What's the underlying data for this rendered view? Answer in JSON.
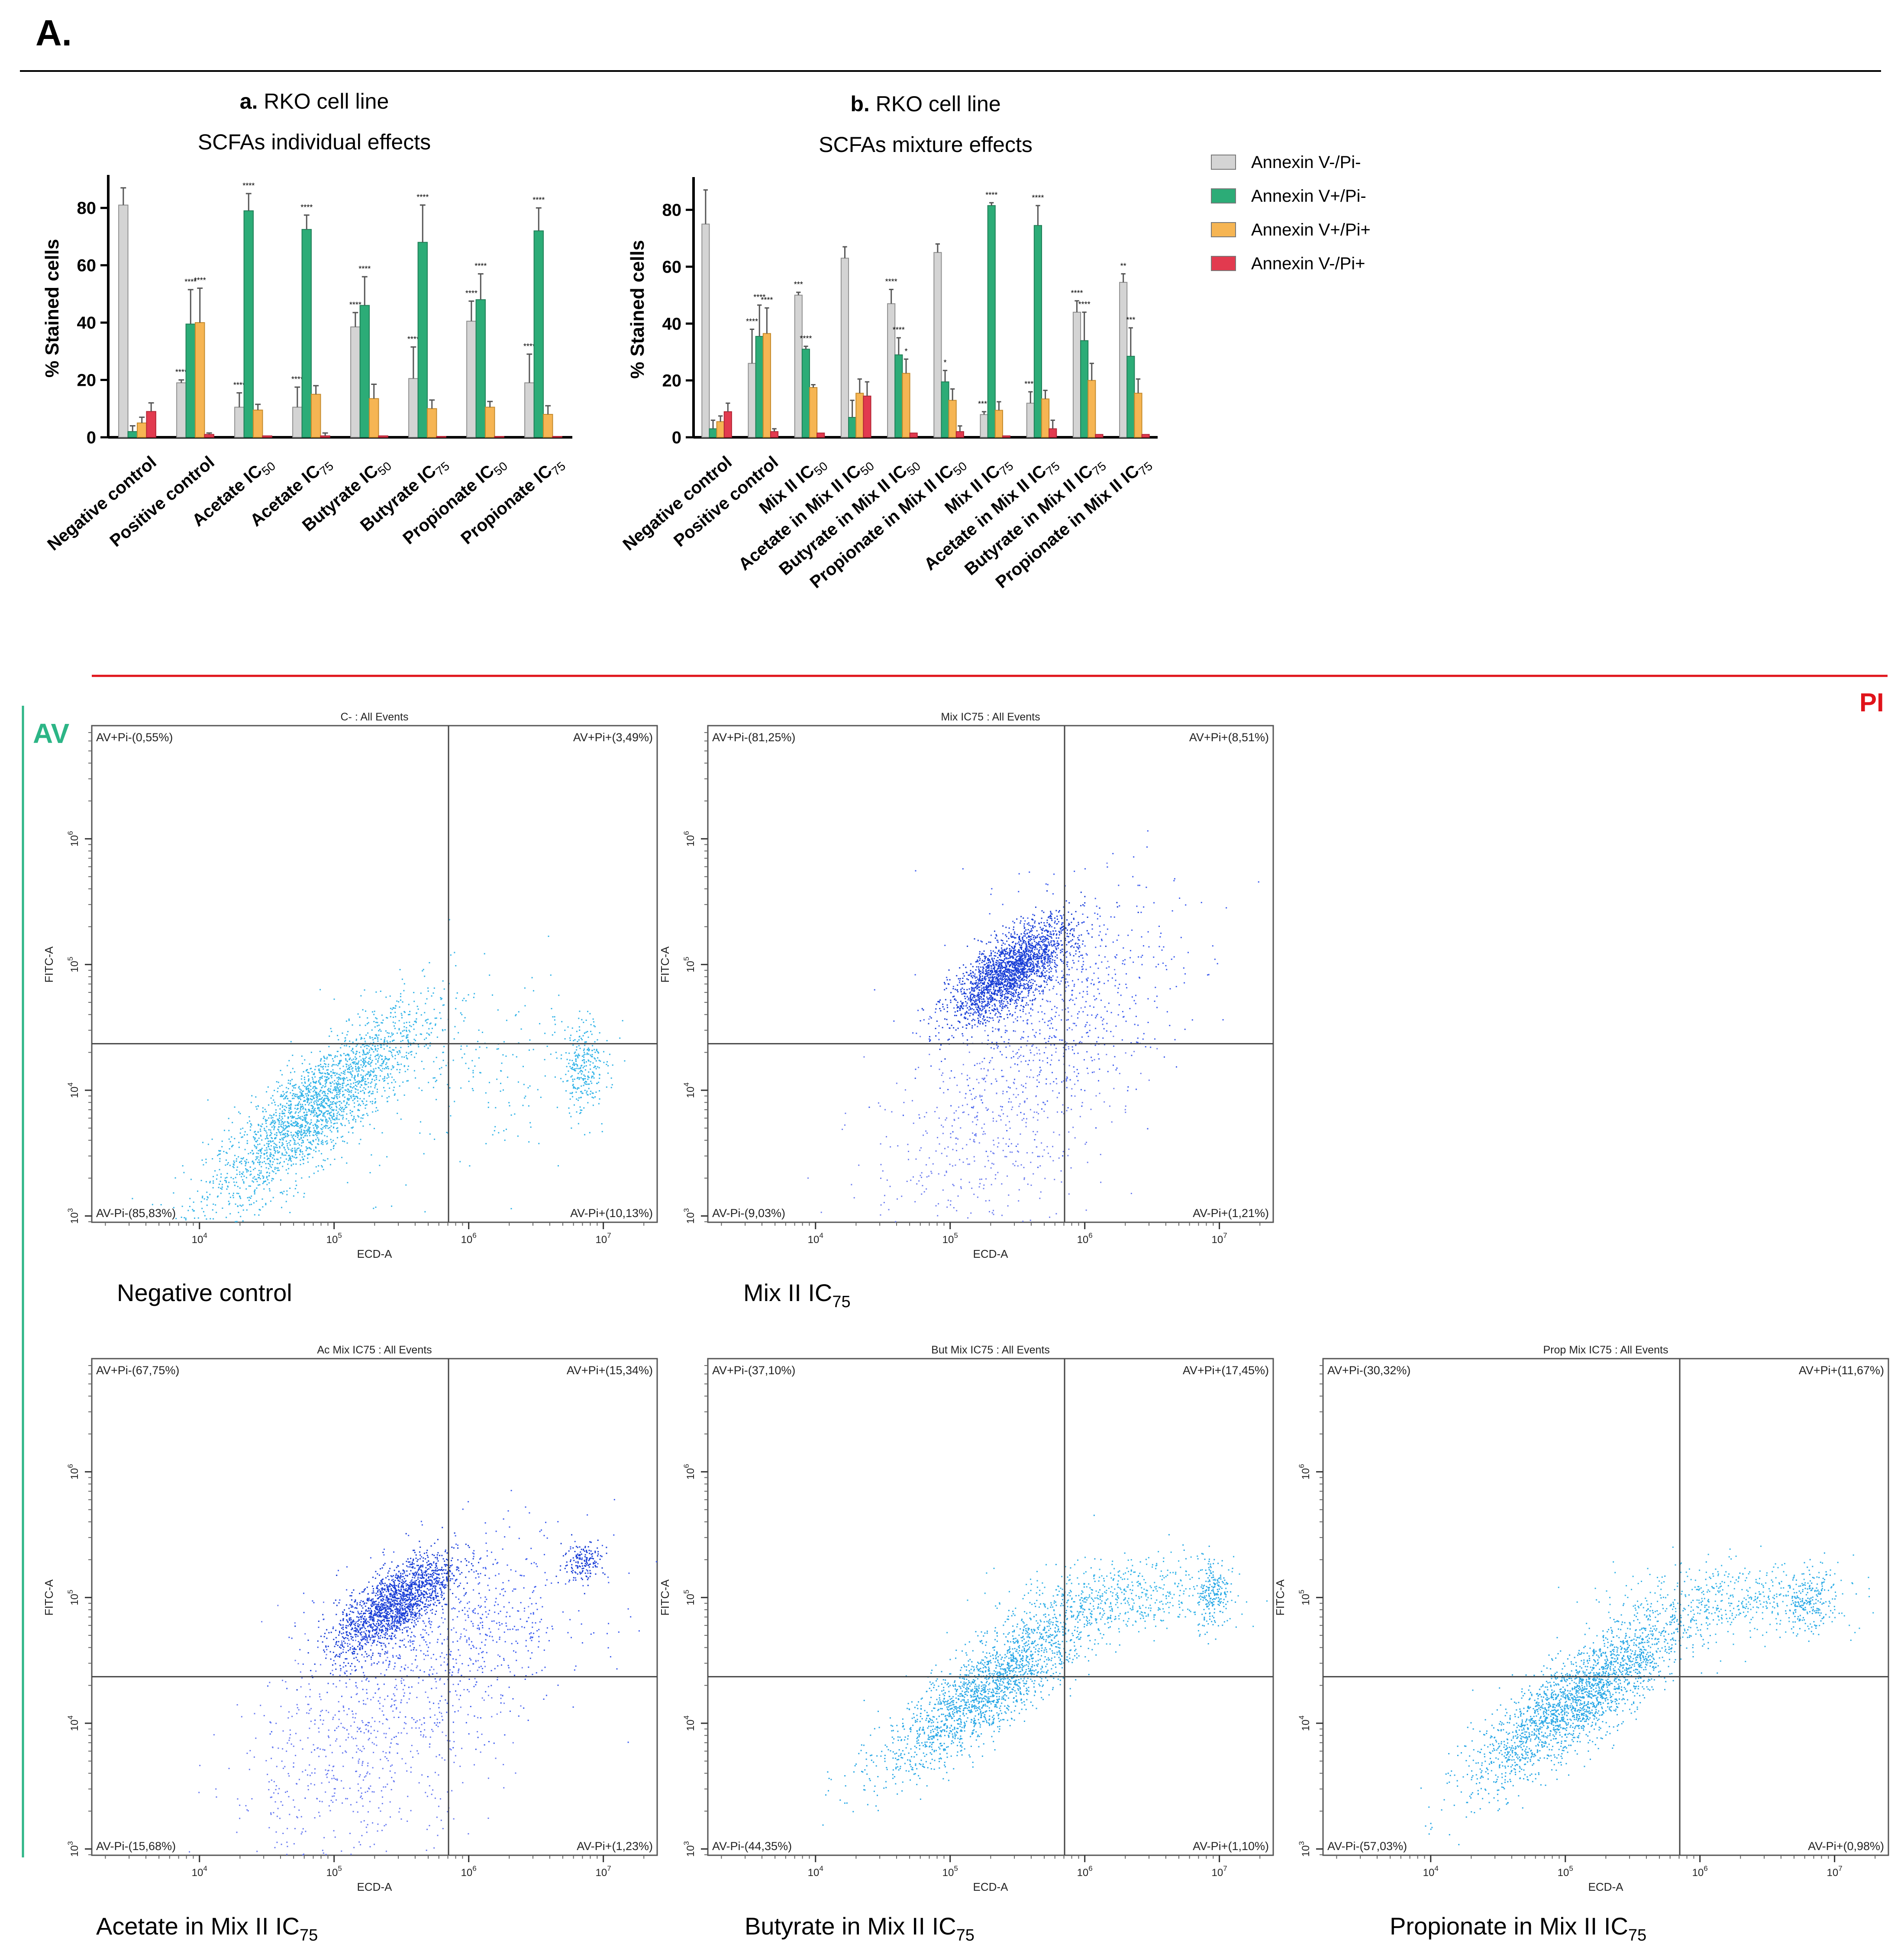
{
  "panel_label": "A.",
  "colors": {
    "neg_neg": "#d4d4d4",
    "pos_neg": "#2cac77",
    "pos_pos": "#f6b553",
    "neg_pos": "#e23a4f",
    "top_rule": "#000000",
    "red_rule": "#e0131a",
    "green_rule": "#2cb586",
    "av_text": "#2cb586",
    "pi_text": "#e0131a"
  },
  "legend": [
    {
      "label": "Annexin V-/Pi-",
      "color_key": "neg_neg"
    },
    {
      "label": "Annexin V+/Pi-",
      "color_key": "pos_neg"
    },
    {
      "label": "Annexin V+/Pi+",
      "color_key": "pos_pos"
    },
    {
      "label": "Annexin V-/Pi+",
      "color_key": "neg_pos"
    }
  ],
  "axis_labels": {
    "pi": "PI",
    "av": "AV"
  },
  "chart_data": [
    {
      "type": "bar",
      "title_prefix": "a.",
      "title": "RKO cell line",
      "subtitle": "SCFAs individual effects",
      "ylabel": "% Stained cells",
      "ylim": [
        0,
        90
      ],
      "yticks": [
        0,
        20,
        40,
        60,
        80
      ],
      "categories": [
        "Negative control",
        "Positive control",
        "Acetate IC50",
        "Acetate IC75",
        "Butyrate IC50",
        "Butyrate IC75",
        "Propionate IC50",
        "Propionate IC75"
      ],
      "series": [
        {
          "name": "Annexin V-/Pi-",
          "values": [
            81,
            19,
            10.5,
            10.5,
            38.5,
            20.5,
            40.5,
            19
          ],
          "errors": [
            6,
            1,
            5,
            7,
            5,
            11,
            7,
            10
          ],
          "stars": [
            "",
            "****",
            "****",
            "****",
            "****",
            "****",
            "****",
            "****"
          ]
        },
        {
          "name": "Annexin V+/Pi-",
          "values": [
            2,
            39.5,
            79,
            72.5,
            46,
            68,
            48,
            72
          ],
          "errors": [
            2,
            12,
            6,
            5,
            10,
            13,
            9,
            8
          ],
          "stars": [
            "",
            "****",
            "****",
            "****",
            "****",
            "****",
            "****",
            "****"
          ]
        },
        {
          "name": "Annexin V+/Pi+",
          "values": [
            5,
            40,
            9.5,
            15,
            13.5,
            10,
            10.5,
            8
          ],
          "errors": [
            2,
            12,
            2,
            3,
            5,
            3,
            2,
            3
          ],
          "stars": [
            "",
            "****",
            "",
            "",
            "",
            "",
            "",
            ""
          ]
        },
        {
          "name": "Annexin V-/Pi+",
          "values": [
            9,
            1,
            0.5,
            0.5,
            0.5,
            0.3,
            0.3,
            0.3
          ],
          "errors": [
            3,
            0.5,
            0,
            1,
            0,
            0,
            0,
            0
          ],
          "stars": [
            "",
            "",
            "",
            "",
            "",
            "",
            "",
            ""
          ]
        }
      ]
    },
    {
      "type": "bar",
      "title_prefix": "b.",
      "title": "RKO cell line",
      "subtitle": "SCFAs mixture effects",
      "ylabel": "% Stained cells",
      "ylim": [
        0,
        90
      ],
      "yticks": [
        0,
        20,
        40,
        60,
        80
      ],
      "categories": [
        "Negative control",
        "Positive control",
        "Mix II IC50",
        "Acetate in Mix II IC50",
        "Butyrate in Mix II IC50",
        "Propionate in Mix II IC50",
        "Mix II IC75",
        "Acetate in Mix II IC75",
        "Butyrate in Mix II IC75",
        "Propionate in Mix II IC75"
      ],
      "series": [
        {
          "name": "Annexin V-/Pi-",
          "values": [
            75,
            26,
            50,
            63,
            47,
            65,
            8,
            12,
            44,
            54.5
          ],
          "errors": [
            12,
            12,
            1,
            4,
            5,
            3,
            1,
            4,
            4,
            3
          ],
          "stars": [
            "",
            "****",
            "***",
            "",
            "****",
            "",
            "****",
            "****",
            "****",
            "**"
          ]
        },
        {
          "name": "Annexin V+/Pi-",
          "values": [
            3,
            35.5,
            31,
            7,
            29,
            19.5,
            81.5,
            74.5,
            34,
            28.5
          ],
          "errors": [
            3,
            11,
            1,
            6,
            6,
            4,
            1,
            7,
            10,
            10
          ],
          "stars": [
            "",
            "****",
            "****",
            "",
            "****",
            "*",
            "****",
            "****",
            "****",
            "***"
          ]
        },
        {
          "name": "Annexin V+/Pi+",
          "values": [
            5.5,
            36.5,
            17.5,
            15.5,
            22.5,
            13,
            9.5,
            13.5,
            20,
            15.5
          ],
          "errors": [
            2,
            9,
            1,
            5,
            5,
            4,
            3,
            3,
            6,
            5
          ],
          "stars": [
            "",
            "****",
            "",
            "",
            "*",
            "",
            "",
            "",
            "",
            ""
          ]
        },
        {
          "name": "Annexin V-/Pi+",
          "values": [
            9,
            2,
            1.5,
            14.5,
            1.5,
            2,
            0.5,
            3,
            1,
            1
          ],
          "errors": [
            3,
            1,
            0,
            5,
            0,
            2,
            0,
            3,
            0,
            0
          ],
          "stars": [
            "",
            "",
            "",
            "",
            "",
            "",
            "",
            "",
            "",
            ""
          ]
        }
      ]
    },
    {
      "type": "scatter",
      "title": "C- : All Events",
      "caption": "Negative control",
      "xlabel": "ECD-A",
      "ylabel": "FITC-A",
      "x_ticks": [
        "10^4",
        "10^5",
        "10^6",
        "10^7"
      ],
      "y_ticks": [
        "10^3",
        "10^4",
        "10^5",
        "10^6"
      ],
      "quadrants": {
        "upper_left": "AV+Pi-(0,55%)",
        "upper_right": "AV+Pi+(3,49%)",
        "lower_left": "AV-Pi-(85,83%)",
        "lower_right": "AV-Pi+(10,13%)"
      },
      "clusters": [
        {
          "log_x": 4.85,
          "log_y": 3.85,
          "spread_x": 0.4,
          "spread_y": 0.4,
          "corr": 0.85,
          "n": 2400,
          "color": "#34b4e8"
        },
        {
          "log_x": 6.85,
          "log_y": 4.2,
          "spread_x": 0.07,
          "spread_y": 0.18,
          "corr": 0.1,
          "n": 260,
          "color": "#34b4e8"
        },
        {
          "log_x": 6.1,
          "log_y": 4.1,
          "spread_x": 0.6,
          "spread_y": 0.4,
          "corr": 0.2,
          "n": 260,
          "color": "#34b4e8"
        }
      ]
    },
    {
      "type": "scatter",
      "title": "Mix IC75 : All Events",
      "caption": "Mix II IC",
      "caption_sub": "75",
      "xlabel": "ECD-A",
      "ylabel": "FITC-A",
      "x_ticks": [
        "10^4",
        "10^5",
        "10^6",
        "10^7"
      ],
      "y_ticks": [
        "10^3",
        "10^4",
        "10^5",
        "10^6"
      ],
      "quadrants": {
        "upper_left": "AV+Pi-(81,25%)",
        "upper_right": "AV+Pi+(8,51%)",
        "lower_left": "AV-Pi-(9,03%)",
        "lower_right": "AV-Pi+(1,21%)"
      },
      "clusters": [
        {
          "log_x": 5.45,
          "log_y": 4.95,
          "spread_x": 0.22,
          "spread_y": 0.2,
          "corr": 0.7,
          "n": 2200,
          "color": "#1a3fd6"
        },
        {
          "log_x": 5.8,
          "log_y": 4.7,
          "spread_x": 0.45,
          "spread_y": 0.45,
          "corr": 0.3,
          "n": 700,
          "color": "#3f5ff0"
        },
        {
          "log_x": 5.3,
          "log_y": 3.7,
          "spread_x": 0.45,
          "spread_y": 0.45,
          "corr": 0.4,
          "n": 500,
          "color": "#7080f0"
        }
      ]
    },
    {
      "type": "scatter",
      "title": "Ac Mix IC75 : All Events",
      "caption": "Acetate in Mix II IC",
      "caption_sub": "75",
      "xlabel": "ECD-A",
      "ylabel": "FITC-A",
      "x_ticks": [
        "10^4",
        "10^5",
        "10^6",
        "10^7"
      ],
      "y_ticks": [
        "10^3",
        "10^4",
        "10^5",
        "10^6"
      ],
      "quadrants": {
        "upper_left": "AV+Pi-(67,75%)",
        "upper_right": "AV+Pi+(15,34%)",
        "lower_left": "AV-Pi-(15,68%)",
        "lower_right": "AV-Pi+(1,23%)"
      },
      "clusters": [
        {
          "log_x": 5.45,
          "log_y": 4.95,
          "spread_x": 0.22,
          "spread_y": 0.2,
          "corr": 0.7,
          "n": 1800,
          "color": "#1a3fd6"
        },
        {
          "log_x": 5.9,
          "log_y": 4.7,
          "spread_x": 0.5,
          "spread_y": 0.4,
          "corr": 0.3,
          "n": 700,
          "color": "#3f5ff0"
        },
        {
          "log_x": 5.2,
          "log_y": 3.8,
          "spread_x": 0.5,
          "spread_y": 0.5,
          "corr": 0.4,
          "n": 700,
          "color": "#6a7cf2"
        },
        {
          "log_x": 6.85,
          "log_y": 5.3,
          "spread_x": 0.08,
          "spread_y": 0.08,
          "corr": 0.2,
          "n": 160,
          "color": "#1a3fd6"
        }
      ]
    },
    {
      "type": "scatter",
      "title": "But Mix IC75 : All Events",
      "caption": "Butyrate in Mix II IC",
      "caption_sub": "75",
      "xlabel": "ECD-A",
      "ylabel": "FITC-A",
      "x_ticks": [
        "10^4",
        "10^5",
        "10^6",
        "10^7"
      ],
      "y_ticks": [
        "10^3",
        "10^4",
        "10^5",
        "10^6"
      ],
      "quadrants": {
        "upper_left": "AV+Pi-(37,10%)",
        "upper_right": "AV+Pi+(17,45%)",
        "lower_left": "AV-Pi-(44,35%)",
        "lower_right": "AV-Pi+(1,10%)"
      },
      "clusters": [
        {
          "log_x": 5.3,
          "log_y": 4.3,
          "spread_x": 0.4,
          "spread_y": 0.35,
          "corr": 0.85,
          "n": 2000,
          "color": "#2aa8e6"
        },
        {
          "log_x": 6.3,
          "log_y": 5.0,
          "spread_x": 0.4,
          "spread_y": 0.15,
          "corr": 0.1,
          "n": 500,
          "color": "#34b4e8"
        },
        {
          "log_x": 6.95,
          "log_y": 5.05,
          "spread_x": 0.06,
          "spread_y": 0.15,
          "corr": 0.1,
          "n": 200,
          "color": "#2aa8e6"
        }
      ]
    },
    {
      "type": "scatter",
      "title": "Prop Mix IC75 : All Events",
      "caption": "Propionate in Mix II IC",
      "caption_sub": "75",
      "xlabel": "ECD-A",
      "ylabel": "FITC-A",
      "x_ticks": [
        "10^4",
        "10^5",
        "10^6",
        "10^7"
      ],
      "y_ticks": [
        "10^3",
        "10^4",
        "10^5",
        "10^6"
      ],
      "quadrants": {
        "upper_left": "AV+Pi-(30,32%)",
        "upper_right": "AV+Pi+(11,67%)",
        "lower_left": "AV-Pi-(57,03%)",
        "lower_right": "AV-Pi+(0,98%)"
      },
      "clusters": [
        {
          "log_x": 5.1,
          "log_y": 4.2,
          "spread_x": 0.4,
          "spread_y": 0.35,
          "corr": 0.85,
          "n": 2300,
          "color": "#2aa8e6"
        },
        {
          "log_x": 6.3,
          "log_y": 5.0,
          "spread_x": 0.45,
          "spread_y": 0.15,
          "corr": 0.1,
          "n": 450,
          "color": "#34b4e8"
        },
        {
          "log_x": 6.8,
          "log_y": 4.95,
          "spread_x": 0.1,
          "spread_y": 0.12,
          "corr": 0.1,
          "n": 200,
          "color": "#2aa8e6"
        }
      ]
    }
  ]
}
